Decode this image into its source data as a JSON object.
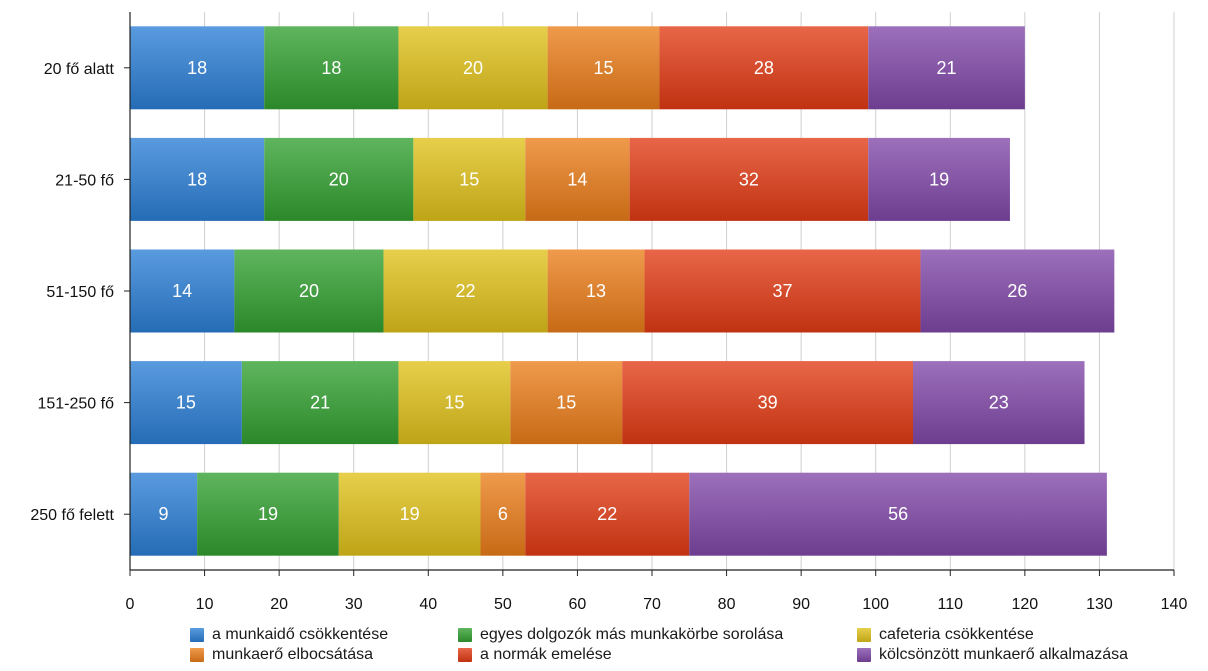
{
  "chart_data": {
    "type": "bar",
    "orientation": "horizontal",
    "stacked": true,
    "categories": [
      "20 fő alatt",
      "21-50 fő",
      "51-150 fő",
      "151-250 fő",
      "250 fő felett"
    ],
    "series": [
      {
        "name": "a munkaidő csökkentése",
        "values": [
          18,
          18,
          14,
          15,
          9
        ],
        "color": "#2b7fd6"
      },
      {
        "name": "egyes dolgozók más munkakörbe sorolása",
        "values": [
          18,
          20,
          20,
          21,
          19
        ],
        "color": "#32a030"
      },
      {
        "name": "cafeteria csökkentése",
        "values": [
          20,
          15,
          22,
          15,
          19
        ],
        "color": "#e0c11a"
      },
      {
        "name": "munkaerő elbocsátása",
        "values": [
          15,
          14,
          13,
          15,
          6
        ],
        "color": "#ea7d1a"
      },
      {
        "name": "a normák emelése",
        "values": [
          28,
          32,
          37,
          39,
          22
        ],
        "color": "#e23b14"
      },
      {
        "name": "kölcsönzött munkaerő alkalmazása",
        "values": [
          21,
          19,
          26,
          23,
          56
        ],
        "color": "#8048a8"
      }
    ],
    "xlim": [
      0,
      140
    ],
    "xticks": [
      "0",
      "10",
      "20",
      "30",
      "40",
      "50",
      "60",
      "70",
      "80",
      "90",
      "100",
      "110",
      "120",
      "130",
      "140"
    ],
    "grid": true,
    "legend_position": "bottom",
    "xlabel": "",
    "ylabel": "",
    "title": ""
  }
}
